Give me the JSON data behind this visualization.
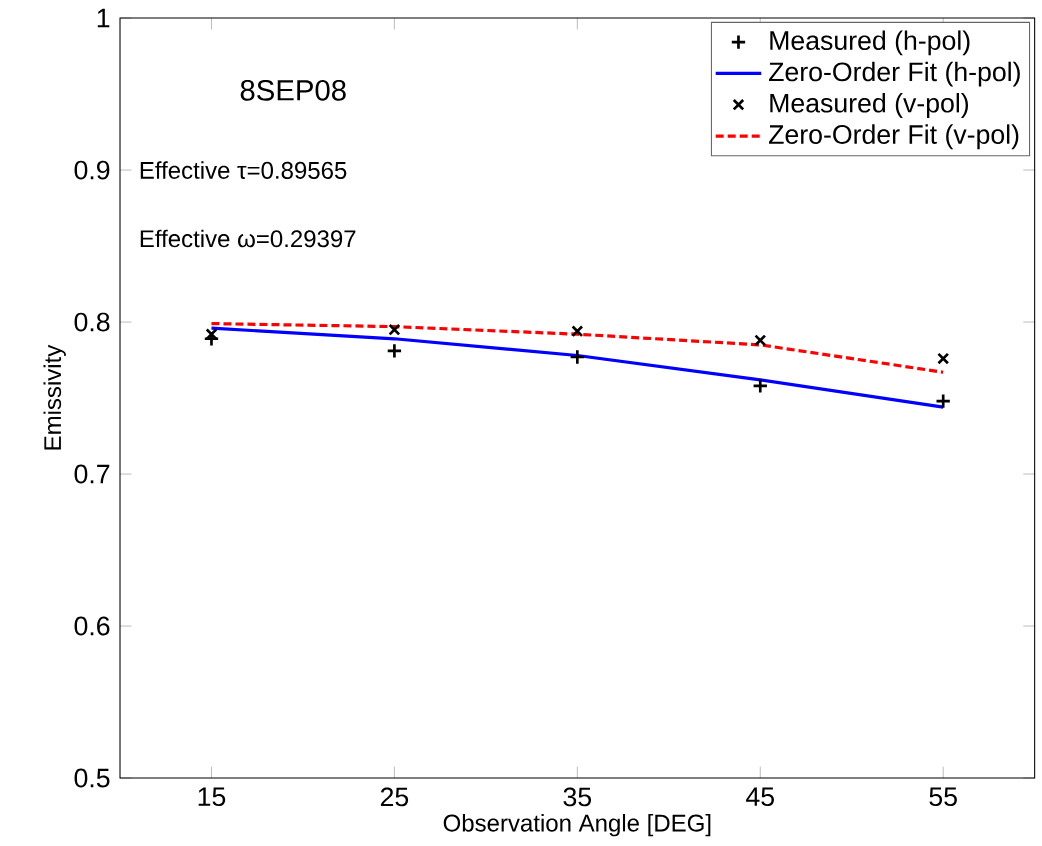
{
  "chart_data": {
    "type": "line",
    "xlabel": "Observation Angle [DEG]",
    "ylabel": "Emissivity",
    "xlim": [
      10,
      60
    ],
    "xticks": [
      15,
      25,
      35,
      45,
      55
    ],
    "ylim": [
      0.5,
      1
    ],
    "yticks": [
      0.5,
      0.6,
      0.7,
      0.8,
      0.9,
      1
    ],
    "legend": "top right",
    "grid": false,
    "annotations": [
      "8SEP08",
      "Effective τ=0.89565",
      "Effective ω=0.29397"
    ],
    "series": [
      {
        "name": "Measured (h-pol)",
        "type": "scatter",
        "marker": "plus",
        "color": "#000000",
        "x": [
          15,
          25,
          35,
          45,
          55
        ],
        "values": [
          0.789,
          0.781,
          0.777,
          0.758,
          0.748
        ]
      },
      {
        "name": "Zero-Order Fit (h-pol)",
        "line_style": "solid",
        "color": "#0000ff",
        "x": [
          15,
          25,
          35,
          45,
          55
        ],
        "values": [
          0.796,
          0.789,
          0.778,
          0.762,
          0.744
        ]
      },
      {
        "name": "Measured (v-pol)",
        "type": "scatter",
        "marker": "cross",
        "color": "#000000",
        "x": [
          15,
          25,
          35,
          45,
          55
        ],
        "values": [
          0.792,
          0.795,
          0.794,
          0.788,
          0.776
        ]
      },
      {
        "name": "Zero-Order Fit (v-pol)",
        "line_style": "dashed",
        "color": "#ff0000",
        "x": [
          15,
          25,
          35,
          45,
          55
        ],
        "values": [
          0.799,
          0.797,
          0.792,
          0.785,
          0.767
        ]
      }
    ]
  }
}
